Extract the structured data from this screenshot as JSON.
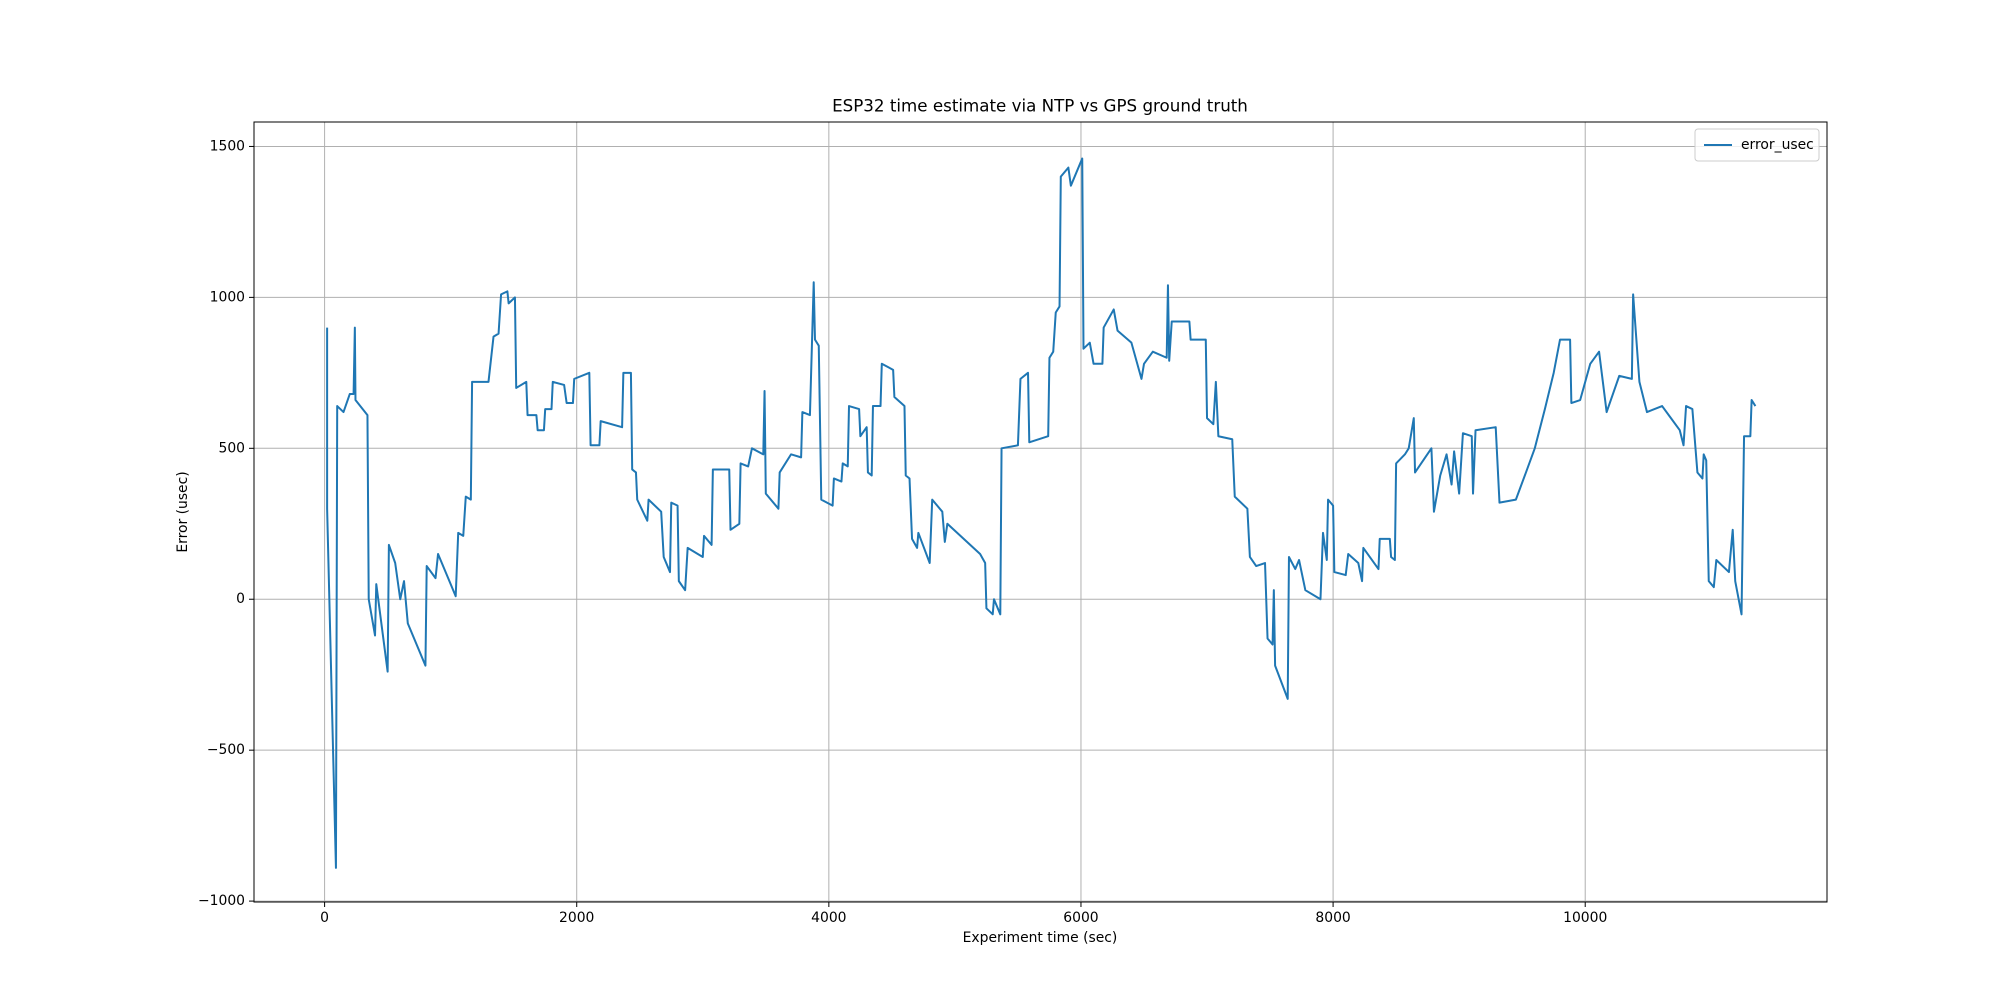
{
  "chart_data": {
    "type": "line",
    "title": "ESP32 time estimate via NTP vs GPS ground truth",
    "x_label": "Experiment time (sec)",
    "y_label": "Error (usec)",
    "xlim": [
      -560,
      11918
    ],
    "ylim": [
      -1003,
      1581
    ],
    "xticks": [
      0,
      2000,
      4000,
      6000,
      8000,
      10000
    ],
    "yticks": [
      {
        "value": -1000,
        "label": "−1000"
      },
      {
        "value": -500,
        "label": "−500"
      },
      0,
      500,
      1000,
      1500
    ],
    "grid": true,
    "legend": "upper right",
    "x": [
      20,
      20,
      90,
      100,
      150,
      200,
      230,
      240,
      245,
      340,
      350,
      400,
      410,
      500,
      510,
      560,
      600,
      630,
      660,
      800,
      810,
      880,
      900,
      1000,
      1040,
      1060,
      1100,
      1120,
      1160,
      1170,
      1300,
      1340,
      1380,
      1400,
      1450,
      1460,
      1510,
      1520,
      1600,
      1610,
      1680,
      1690,
      1740,
      1750,
      1800,
      1810,
      1900,
      1920,
      1970,
      1980,
      2100,
      2110,
      2180,
      2190,
      2360,
      2370,
      2430,
      2440,
      2470,
      2480,
      2560,
      2570,
      2670,
      2690,
      2740,
      2750,
      2800,
      2810,
      2860,
      2880,
      3000,
      3010,
      3070,
      3080,
      3210,
      3220,
      3290,
      3300,
      3360,
      3390,
      3480,
      3490,
      3500,
      3600,
      3610,
      3700,
      3780,
      3790,
      3850,
      3880,
      3890,
      3920,
      3940,
      4030,
      4040,
      4100,
      4110,
      4150,
      4160,
      4240,
      4250,
      4300,
      4310,
      4340,
      4350,
      4410,
      4420,
      4510,
      4520,
      4600,
      4610,
      4640,
      4660,
      4700,
      4710,
      4800,
      4820,
      4900,
      4920,
      4940,
      5200,
      5240,
      5250,
      5300,
      5310,
      5360,
      5370,
      5500,
      5520,
      5580,
      5590,
      5740,
      5750,
      5780,
      5800,
      5830,
      5840,
      5900,
      5920,
      6010,
      6020,
      6070,
      6100,
      6170,
      6180,
      6260,
      6290,
      6400,
      6480,
      6500,
      6570,
      6680,
      6690,
      6700,
      6720,
      6860,
      6870,
      6990,
      7000,
      7050,
      7070,
      7090,
      7200,
      7220,
      7320,
      7340,
      7390,
      7460,
      7480,
      7520,
      7530,
      7540,
      7640,
      7650,
      7700,
      7730,
      7780,
      7900,
      7920,
      7950,
      7960,
      8000,
      8010,
      8100,
      8120,
      8200,
      8230,
      8240,
      8360,
      8370,
      8450,
      8460,
      8490,
      8500,
      8570,
      8600,
      8640,
      8650,
      8780,
      8800,
      8850,
      8900,
      8940,
      8960,
      9000,
      9030,
      9100,
      9110,
      9130,
      9290,
      9320,
      9450,
      9530,
      9600,
      9680,
      9750,
      9800,
      9880,
      9890,
      9960,
      10040,
      10110,
      10170,
      10270,
      10370,
      10380,
      10430,
      10490,
      10610,
      10680,
      10750,
      10780,
      10800,
      10850,
      10890,
      10930,
      10940,
      10960,
      10980,
      11020,
      11040,
      11140,
      11170,
      11190,
      11240,
      11260,
      11310,
      11320,
      11350
    ],
    "series": [
      {
        "name": "error_usec",
        "color": "#1f77b4",
        "values": [
          900,
          300,
          -890,
          640,
          620,
          680,
          680,
          900,
          660,
          610,
          0,
          -120,
          50,
          -240,
          180,
          120,
          0,
          60,
          -80,
          -220,
          110,
          70,
          150,
          50,
          10,
          220,
          210,
          340,
          330,
          720,
          720,
          870,
          880,
          1010,
          1020,
          980,
          1000,
          700,
          720,
          610,
          610,
          560,
          560,
          630,
          630,
          720,
          710,
          650,
          650,
          730,
          750,
          510,
          510,
          590,
          570,
          750,
          750,
          430,
          420,
          330,
          260,
          330,
          290,
          140,
          90,
          320,
          310,
          60,
          30,
          170,
          140,
          210,
          180,
          430,
          430,
          230,
          250,
          450,
          440,
          500,
          480,
          690,
          350,
          300,
          420,
          480,
          470,
          620,
          610,
          1050,
          860,
          840,
          330,
          310,
          400,
          390,
          450,
          440,
          640,
          630,
          540,
          570,
          420,
          410,
          640,
          640,
          780,
          760,
          670,
          640,
          410,
          400,
          200,
          170,
          220,
          120,
          330,
          290,
          190,
          250,
          150,
          120,
          -30,
          -50,
          0,
          -50,
          500,
          510,
          730,
          750,
          520,
          540,
          800,
          820,
          950,
          970,
          1400,
          1430,
          1370,
          1460,
          830,
          850,
          780,
          780,
          900,
          960,
          890,
          850,
          730,
          780,
          820,
          800,
          1040,
          790,
          920,
          920,
          860,
          860,
          600,
          580,
          720,
          540,
          530,
          340,
          300,
          140,
          110,
          120,
          -130,
          -150,
          30,
          -220,
          -330,
          140,
          100,
          130,
          30,
          0,
          220,
          130,
          330,
          310,
          90,
          80,
          150,
          120,
          60,
          170,
          100,
          200,
          200,
          140,
          130,
          450,
          480,
          500,
          600,
          420,
          500,
          290,
          410,
          480,
          380,
          490,
          350,
          550,
          540,
          350,
          560,
          570,
          320,
          330,
          420,
          500,
          630,
          750,
          860,
          860,
          650,
          660,
          780,
          820,
          620,
          740,
          730,
          1010,
          720,
          620,
          640,
          600,
          560,
          510,
          640,
          630,
          420,
          400,
          480,
          460,
          60,
          40,
          130,
          90,
          230,
          60,
          -50,
          540,
          540,
          660,
          640
        ]
      }
    ]
  }
}
